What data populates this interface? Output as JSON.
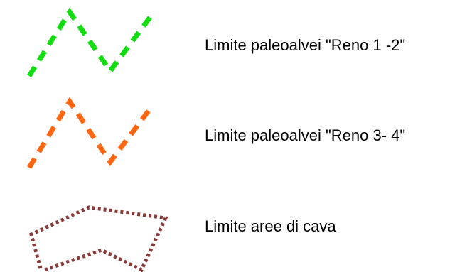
{
  "legend": {
    "items": [
      {
        "label": "Limite paleoalvei \"Reno 1 -2\"",
        "color": "#11dd11",
        "line_style": "dashed",
        "symbol": "zigzag-line"
      },
      {
        "label": "Limite paleoalvei \"Reno 3- 4\"",
        "color": "#ff6611",
        "line_style": "dashed",
        "symbol": "zigzag-line"
      },
      {
        "label": "Limite aree di cava",
        "color": "#8b3a3a",
        "line_style": "dotted",
        "symbol": "polygon-outline"
      }
    ]
  }
}
